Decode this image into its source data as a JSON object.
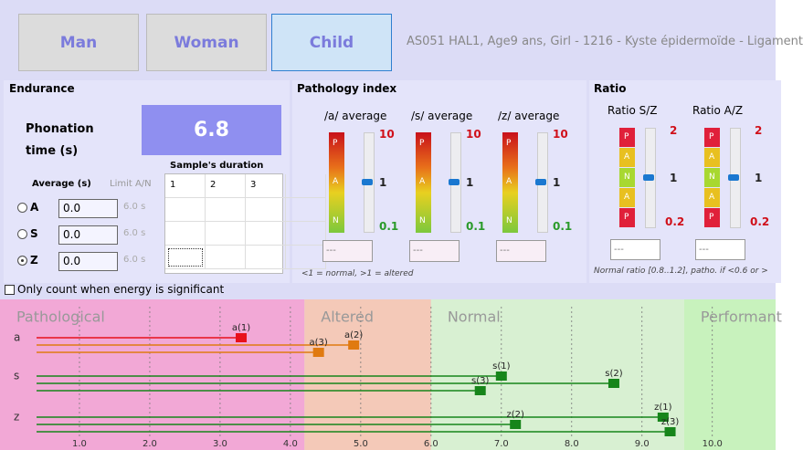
{
  "buttons": [
    "Man",
    "Woman",
    "Child"
  ],
  "patient_info": "AS051 HAL1, Age9 ans, Girl - 1216 - Kyste épidermoïde - Ligament",
  "endurance": {
    "title": "Endurance",
    "phonation_label": "Phonation time (s)",
    "phonation_value": "6.8",
    "samples_title": "Sample's duration",
    "samples_columns": [
      "1",
      "2",
      "3"
    ],
    "average_title": "Average (s)",
    "limit_title": "Limit A/N",
    "rows": [
      {
        "option": "A",
        "value": "0.0",
        "limit": "6.0 s"
      },
      {
        "option": "S",
        "value": "0.0",
        "limit": "6.0 s"
      },
      {
        "option": "Z",
        "value": "0.0",
        "limit": "6.0 s",
        "checked": true
      }
    ]
  },
  "energy_checkbox": "Only count when energy is significant",
  "pathology": {
    "title": "Pathology index",
    "gauges": [
      {
        "label": "/a/ average",
        "scale": [
          "10",
          "1",
          "0.1"
        ],
        "letters": [
          "P",
          "A",
          "N"
        ],
        "field": "---"
      },
      {
        "label": "/s/ average",
        "scale": [
          "10",
          "1",
          "0.1"
        ],
        "letters": [
          "P",
          "A",
          "N"
        ],
        "field": "---"
      },
      {
        "label": "/z/ average",
        "scale": [
          "10",
          "1",
          "0.1"
        ],
        "letters": [
          "P",
          "A",
          "N"
        ],
        "field": "---"
      }
    ],
    "note": "<1 = normal, >1 = altered"
  },
  "ratio": {
    "title": "Ratio",
    "gauges": [
      {
        "label": "Ratio S/Z",
        "scale": [
          "2",
          "1",
          "0.2"
        ],
        "letters": [
          "P",
          "A",
          "N",
          "A",
          "P"
        ],
        "field": "---"
      },
      {
        "label": "Ratio A/Z",
        "scale": [
          "2",
          "1",
          "0.2"
        ],
        "letters": [
          "P",
          "A",
          "N",
          "A",
          "P"
        ],
        "field": "---"
      }
    ],
    "note": "Normal ratio [0.8..1.2], patho. if <0.6 or >"
  },
  "scale": {
    "xlim": [
      0,
      10.9
    ],
    "xticks": [
      {
        "value": 1,
        "label": "1.0"
      },
      {
        "value": 2,
        "label": "2.0"
      },
      {
        "value": 3,
        "label": "3.0"
      },
      {
        "value": 4,
        "label": "4.0"
      },
      {
        "value": 5,
        "label": "5.0"
      },
      {
        "value": 6,
        "label": "6.0"
      },
      {
        "value": 7,
        "label": "7.0"
      },
      {
        "value": 8,
        "label": "8.0"
      },
      {
        "value": 9,
        "label": "9.0"
      },
      {
        "value": 10,
        "label": "10.0"
      }
    ],
    "zones": [
      {
        "label": "Pathological",
        "from": 0,
        "to": 4.2,
        "color": "#f2a8d6"
      },
      {
        "label": "Altered",
        "from": 4.2,
        "to": 6.0,
        "color": "#f4c9b8"
      },
      {
        "label": "Normal",
        "from": 6.0,
        "to": 9.6,
        "color": "#d8f0d2"
      },
      {
        "label": "Performant",
        "from": 9.6,
        "to": 10.9,
        "color": "#c8f2bd"
      }
    ],
    "rows": [
      "a",
      "s",
      "z"
    ],
    "points": [
      {
        "label": "a(1)",
        "row": 0,
        "value": 3.3,
        "color": "#e8101c"
      },
      {
        "label": "a(2)",
        "row": 0,
        "value": 4.9,
        "color": "#e07a10"
      },
      {
        "label": "a(3)",
        "row": 0,
        "value": 4.4,
        "color": "#e07a10"
      },
      {
        "label": "s(1)",
        "row": 1,
        "value": 7.0,
        "color": "#16851a"
      },
      {
        "label": "s(2)",
        "row": 1,
        "value": 8.6,
        "color": "#16851a"
      },
      {
        "label": "s(3)",
        "row": 1,
        "value": 6.7,
        "color": "#16851a"
      },
      {
        "label": "z(1)",
        "row": 2,
        "value": 9.3,
        "color": "#16851a"
      },
      {
        "label": "z(2)",
        "row": 2,
        "value": 7.2,
        "color": "#16851a"
      },
      {
        "label": "z(3)",
        "row": 2,
        "value": 9.4,
        "color": "#16851a"
      }
    ]
  }
}
